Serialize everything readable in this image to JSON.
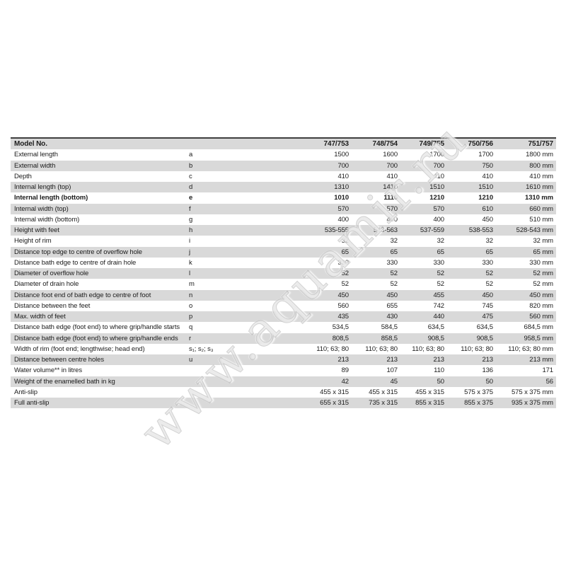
{
  "watermark": {
    "text": "www.aquamir.ru"
  },
  "colors": {
    "band_gray": "#d9d9d9",
    "top_rule": "#3f3f3f",
    "text": "#1c1c1c"
  },
  "table": {
    "header": {
      "label": "Model No.",
      "models": [
        "747/753",
        "748/754",
        "749/755",
        "750/756",
        "751/757"
      ]
    },
    "rows": [
      {
        "label": "External length",
        "sym": "a",
        "values": [
          "1500",
          "1600",
          "1700",
          "1700",
          "1800"
        ],
        "unit": "mm",
        "bold": false
      },
      {
        "label": "External width",
        "sym": "b",
        "values": [
          "700",
          "700",
          "700",
          "750",
          "800"
        ],
        "unit": "mm",
        "bold": false
      },
      {
        "label": "Depth",
        "sym": "c",
        "values": [
          "410",
          "410",
          "410",
          "410",
          "410"
        ],
        "unit": "mm",
        "bold": false
      },
      {
        "label": "Internal length (top)",
        "sym": "d",
        "values": [
          "1310",
          "1410",
          "1510",
          "1510",
          "1610"
        ],
        "unit": "mm",
        "bold": false
      },
      {
        "label": "Internal length (bottom)",
        "sym": "e",
        "values": [
          "1010",
          "1110",
          "1210",
          "1210",
          "1310"
        ],
        "unit": "mm",
        "bold": true
      },
      {
        "label": "Internal width (top)",
        "sym": "f",
        "values": [
          "570",
          "570",
          "570",
          "610",
          "660"
        ],
        "unit": "mm",
        "bold": false
      },
      {
        "label": "Internal width (bottom)",
        "sym": "g",
        "values": [
          "400",
          "400",
          "400",
          "450",
          "510"
        ],
        "unit": "mm",
        "bold": false
      },
      {
        "label": "Height with feet",
        "sym": "h",
        "values": [
          "535-555",
          "543-563",
          "537-559",
          "538-553",
          "528-543"
        ],
        "unit": "mm",
        "bold": false
      },
      {
        "label": "Height of rim",
        "sym": "i",
        "values": [
          "32",
          "32",
          "32",
          "32",
          "32"
        ],
        "unit": "mm",
        "bold": false
      },
      {
        "label": "Distance top edge to centre of overflow hole",
        "sym": "j",
        "values": [
          "65",
          "65",
          "65",
          "65",
          "65"
        ],
        "unit": "mm",
        "bold": false
      },
      {
        "label": "Distance bath edge to centre of drain hole",
        "sym": "k",
        "values": [
          "330",
          "330",
          "330",
          "330",
          "330"
        ],
        "unit": "mm",
        "bold": false
      },
      {
        "label": "Diameter of overflow hole",
        "sym": "l",
        "values": [
          "52",
          "52",
          "52",
          "52",
          "52"
        ],
        "unit": "mm",
        "bold": false
      },
      {
        "label": "Diameter of drain hole",
        "sym": "m",
        "values": [
          "52",
          "52",
          "52",
          "52",
          "52"
        ],
        "unit": "mm",
        "bold": false
      },
      {
        "label": "Distance foot end of bath edge to centre of foot",
        "sym": "n",
        "values": [
          "450",
          "450",
          "455",
          "450",
          "450"
        ],
        "unit": "mm",
        "bold": false
      },
      {
        "label": "Distance between the feet",
        "sym": "o",
        "values": [
          "560",
          "655",
          "742",
          "745",
          "820"
        ],
        "unit": "mm",
        "bold": false
      },
      {
        "label": "Max. width of feet",
        "sym": "p",
        "values": [
          "435",
          "430",
          "440",
          "475",
          "560"
        ],
        "unit": "mm",
        "bold": false
      },
      {
        "label": "Distance bath edge (foot end) to where grip/handle starts",
        "sym": "q",
        "values": [
          "534,5",
          "584,5",
          "634,5",
          "634,5",
          "684,5"
        ],
        "unit": "mm",
        "bold": false
      },
      {
        "label": "Distance bath edge (foot end) to where grip/handle ends",
        "sym": "r",
        "values": [
          "808,5",
          "858,5",
          "908,5",
          "908,5",
          "958,5"
        ],
        "unit": "mm",
        "bold": false
      },
      {
        "label": "Width of rim (foot end; lengthwise; head end)",
        "sym": "s₁; s₂; s₃",
        "values": [
          "110; 63; 80",
          "110; 63; 80",
          "110; 63; 80",
          "110; 63; 80",
          "110; 63; 80"
        ],
        "unit": "mm",
        "bold": false
      },
      {
        "label": "Distance between centre holes",
        "sym": "u",
        "values": [
          "213",
          "213",
          "213",
          "213",
          "213"
        ],
        "unit": "mm",
        "bold": false
      },
      {
        "label": "Water volume** in litres",
        "sym": "",
        "values": [
          "89",
          "107",
          "110",
          "136",
          "171"
        ],
        "unit": "",
        "bold": false
      },
      {
        "label": "Weight of the enamelled bath in kg",
        "sym": "",
        "values": [
          "42",
          "45",
          "50",
          "50",
          "56"
        ],
        "unit": "",
        "bold": false
      },
      {
        "label": "Anti-slip",
        "sym": "",
        "values": [
          "455 x 315",
          "455 x 315",
          "455 x 315",
          "575 x 375",
          "575 x 375"
        ],
        "unit": "mm",
        "bold": false
      },
      {
        "label": "Full anti-slip",
        "sym": "",
        "values": [
          "655 x 315",
          "735 x 315",
          "855 x 315",
          "855 x 375",
          "935 x 375"
        ],
        "unit": "mm",
        "bold": false
      }
    ]
  }
}
